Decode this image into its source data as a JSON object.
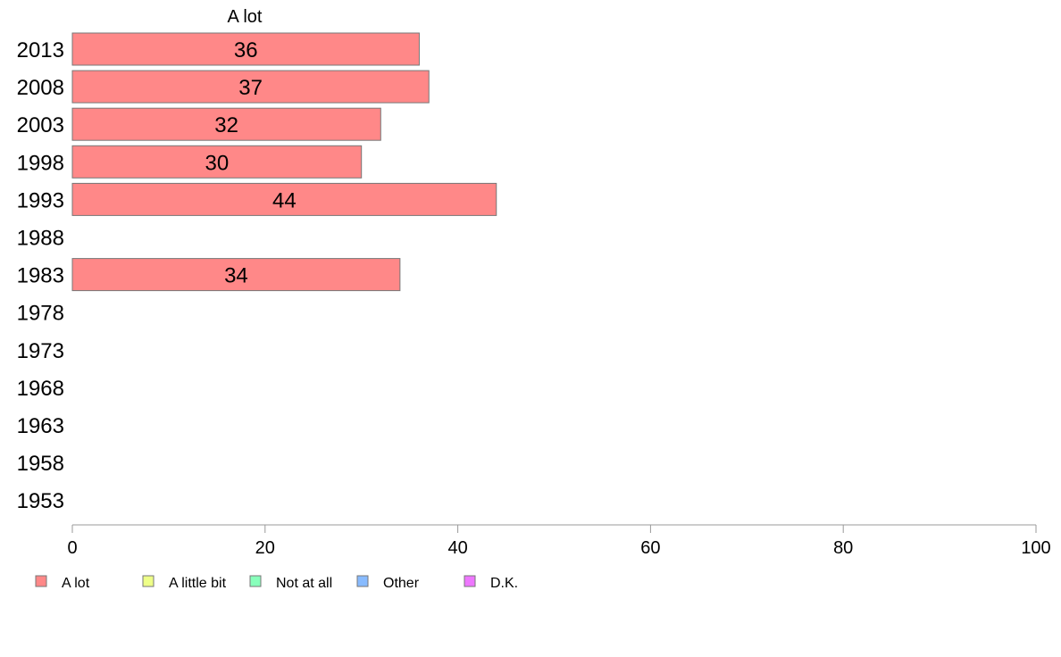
{
  "chart_data": {
    "type": "bar",
    "orientation": "horizontal",
    "stacked": true,
    "categories": [
      "2013",
      "2008",
      "2003",
      "1998",
      "1993",
      "1988",
      "1983",
      "1978",
      "1973",
      "1968",
      "1963",
      "1958",
      "1953"
    ],
    "series": [
      {
        "name": "A lot",
        "color": "#ff8888",
        "values": [
          36,
          37,
          32,
          30,
          44,
          null,
          34,
          null,
          null,
          null,
          null,
          null,
          null
        ]
      },
      {
        "name": "A little bit",
        "color": "#eeff88",
        "values": [
          null,
          null,
          null,
          null,
          null,
          null,
          null,
          null,
          null,
          null,
          null,
          null,
          null
        ]
      },
      {
        "name": "Not at all",
        "color": "#88ffbb",
        "values": [
          null,
          null,
          null,
          null,
          null,
          null,
          null,
          null,
          null,
          null,
          null,
          null,
          null
        ]
      },
      {
        "name": "Other",
        "color": "#88bbff",
        "values": [
          null,
          null,
          null,
          null,
          null,
          null,
          null,
          null,
          null,
          null,
          null,
          null,
          null
        ]
      },
      {
        "name": "D.K.",
        "color": "#ee77ff",
        "values": [
          null,
          null,
          null,
          null,
          null,
          null,
          null,
          null,
          null,
          null,
          null,
          null,
          null
        ]
      }
    ],
    "series_title": "A lot",
    "xlim": [
      0,
      100
    ],
    "xticks": [
      0,
      20,
      40,
      60,
      80,
      100
    ],
    "grid": false,
    "legend_position": "bottom",
    "xlabel": "",
    "ylabel": ""
  }
}
